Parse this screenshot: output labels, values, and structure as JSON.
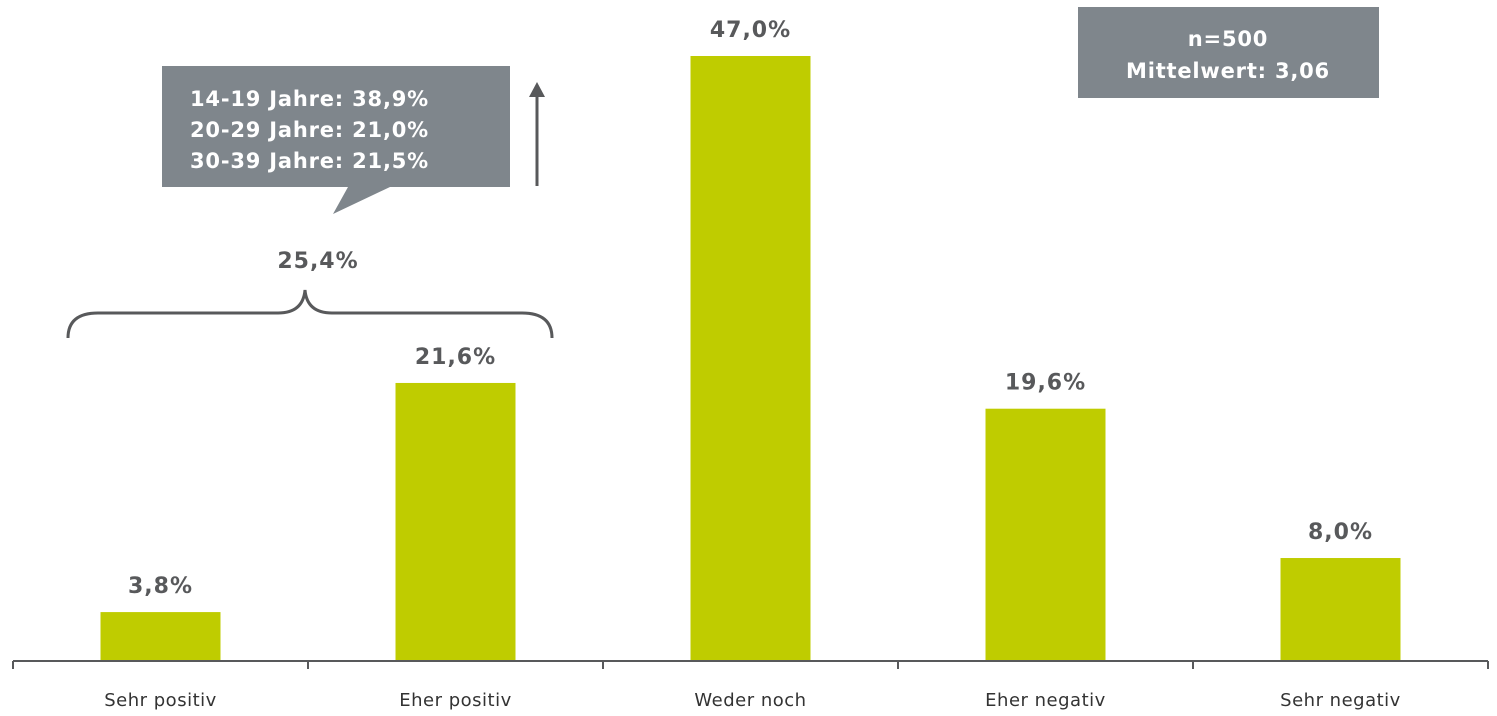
{
  "chart_data": {
    "type": "bar",
    "categories": [
      "Sehr positiv",
      "Eher positiv",
      "Weder noch",
      "Eher negativ",
      "Sehr negativ"
    ],
    "values": [
      3.8,
      21.6,
      47.0,
      19.6,
      8.0
    ],
    "value_labels": [
      "3,8%",
      "21,6%",
      "47,0%",
      "19,6%",
      "8,0%"
    ],
    "unit": "%",
    "ylim": [
      0,
      47
    ],
    "grid": false,
    "bar_color": "#bfcc00",
    "axis_color": "#58595b"
  },
  "info_box": {
    "line1": "n=500",
    "line2": "Mittelwert: 3,06",
    "color": "#7f868c"
  },
  "callout": {
    "lines": [
      "14-19 Jahre: 38,9%",
      "20-29 Jahre: 21,0%",
      "30-39 Jahre: 21,5%"
    ],
    "color": "#7f868c"
  },
  "brace": {
    "label": "25,4%",
    "spans_categories": [
      "Sehr positiv",
      "Eher positiv"
    ]
  },
  "arrow": {
    "direction": "up"
  }
}
